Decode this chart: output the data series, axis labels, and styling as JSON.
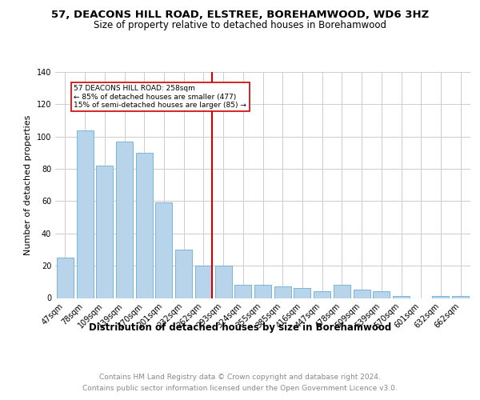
{
  "title": "57, DEACONS HILL ROAD, ELSTREE, BOREHAMWOOD, WD6 3HZ",
  "subtitle": "Size of property relative to detached houses in Borehamwood",
  "xlabel": "Distribution of detached houses by size in Borehamwood",
  "ylabel": "Number of detached properties",
  "footer": "Contains HM Land Registry data © Crown copyright and database right 2024.\nContains public sector information licensed under the Open Government Licence v3.0.",
  "categories": [
    "47sqm",
    "78sqm",
    "109sqm",
    "139sqm",
    "170sqm",
    "201sqm",
    "232sqm",
    "262sqm",
    "293sqm",
    "324sqm",
    "355sqm",
    "385sqm",
    "416sqm",
    "447sqm",
    "478sqm",
    "509sqm",
    "539sqm",
    "570sqm",
    "601sqm",
    "632sqm",
    "662sqm"
  ],
  "values": [
    25,
    104,
    82,
    97,
    90,
    59,
    30,
    20,
    20,
    8,
    8,
    7,
    6,
    4,
    8,
    5,
    4,
    1,
    0,
    1,
    1
  ],
  "bar_color": "#b8d4ea",
  "bar_edgecolor": "#6aaed6",
  "red_line_index": 7,
  "annotation_line1": "57 DEACONS HILL ROAD: 258sqm",
  "annotation_line2": "← 85% of detached houses are smaller (477)",
  "annotation_line3": "15% of semi-detached houses are larger (85) →",
  "annotation_box_color": "#ffffff",
  "annotation_box_edgecolor": "#cc0000",
  "red_line_color": "#cc0000",
  "ylim": [
    0,
    140
  ],
  "yticks": [
    0,
    20,
    40,
    60,
    80,
    100,
    120,
    140
  ],
  "grid_color": "#cccccc",
  "background_color": "#ffffff",
  "title_fontsize": 9.5,
  "subtitle_fontsize": 8.5,
  "xlabel_fontsize": 8.5,
  "ylabel_fontsize": 8,
  "tick_fontsize": 7,
  "footer_fontsize": 6.5,
  "footer_color": "#888888"
}
